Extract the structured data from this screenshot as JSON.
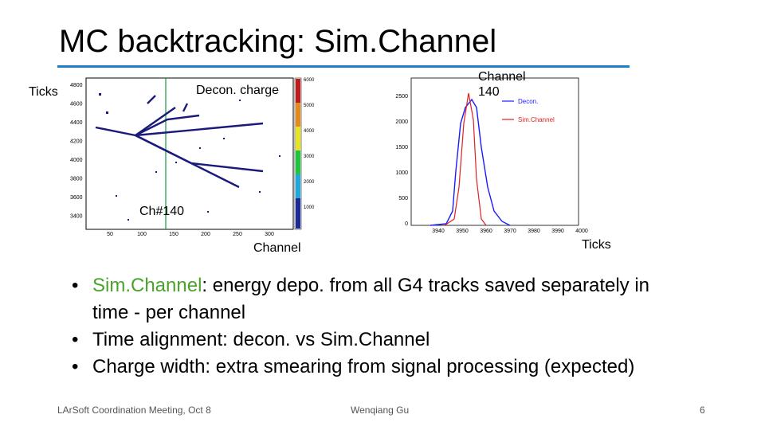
{
  "slide": {
    "title": "MC backtracking: Sim.Channel",
    "footer_left": "LArSoft Coordination Meeting, Oct 8",
    "footer_center": "Wenqiang Gu",
    "page_number": "6"
  },
  "left_figure": {
    "y_label": "Ticks",
    "x_label": "Channel",
    "inset_label": "Decon. charge",
    "marker_label": "Ch#140",
    "x_ticks": [
      "50",
      "100",
      "150",
      "200",
      "250",
      "300"
    ],
    "y_ticks": [
      "4800",
      "4600",
      "4400",
      "4200",
      "4000",
      "3800",
      "3600",
      "3400"
    ],
    "colorbar_ticks": [
      "6000",
      "5000",
      "4000",
      "3000",
      "2000",
      "1000"
    ]
  },
  "right_figure": {
    "annotation_line1": "Channel",
    "annotation_line2": "140",
    "x_label": "Ticks",
    "legend": [
      "Decon.",
      "Sim.Channel"
    ],
    "x_ticks": [
      "3940",
      "3950",
      "3960",
      "3970",
      "3980",
      "3990",
      "4000"
    ],
    "y_ticks": [
      "2500",
      "2000",
      "1500",
      "1000",
      "500",
      "0"
    ]
  },
  "bullets": [
    {
      "highlight": "Sim.Channel",
      "text": ": energy depo. from all G4 tracks saved separately in time  - per channel"
    },
    {
      "highlight": "",
      "text": "Time alignment: decon. vs Sim.Channel"
    },
    {
      "highlight": "",
      "text": "Charge width: extra smearing from signal processing (expected)"
    }
  ],
  "colors": {
    "accent_line": "#1f7fc4",
    "highlight_text": "#4aa32c",
    "decon": "#1a1aff",
    "simchannel": "#e02020"
  }
}
